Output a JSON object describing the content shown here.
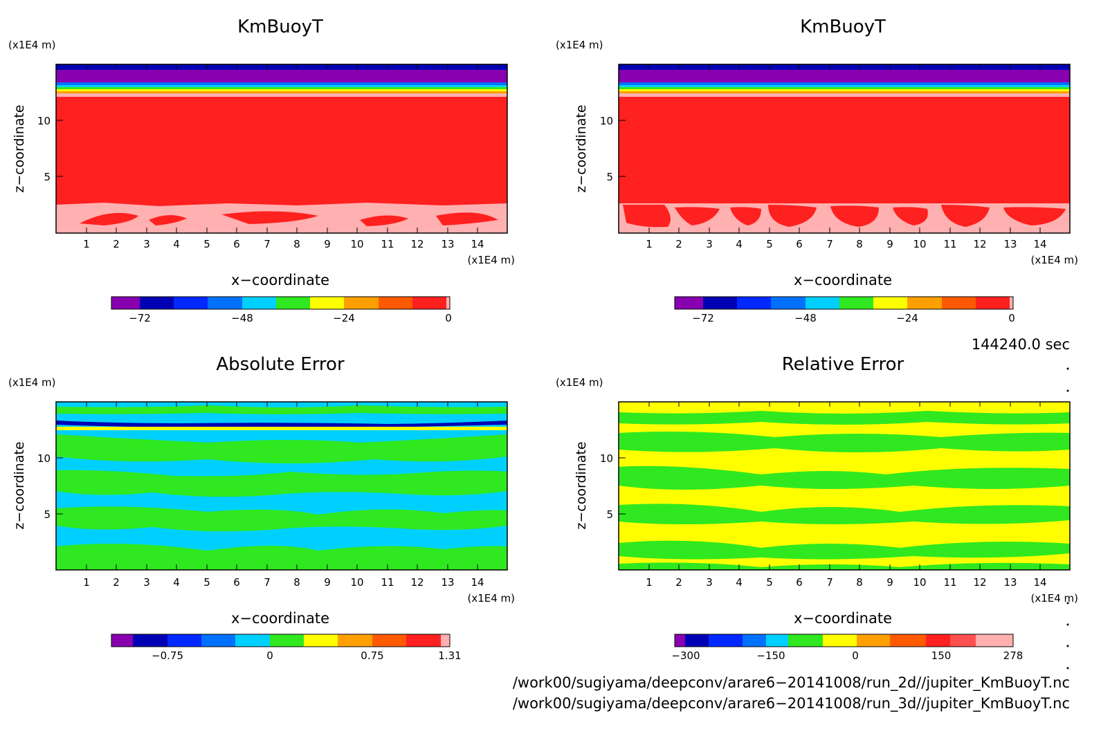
{
  "panels": [
    {
      "title": "KmBuoyT",
      "y_unit": "(x1E4 m)",
      "x_unit": "(x1E4 m)",
      "ylabel": "z−coordinate",
      "xlabel": "x−coordinate",
      "x_ticks": [
        "1",
        "2",
        "3",
        "4",
        "5",
        "6",
        "7",
        "8",
        "9",
        "10",
        "11",
        "12",
        "13",
        "14"
      ],
      "y_ticks": [
        "5",
        "10"
      ],
      "colorbar": {
        "colors": [
          "#8800b0",
          "#0000b4",
          "#0028ff",
          "#0070ff",
          "#00d0ff",
          "#30e820",
          "#ffff00",
          "#ffa000",
          "#ff5a00",
          "#ff2020",
          "#ffb0b0"
        ],
        "labels": [
          "−72",
          "−48",
          "−24",
          "0"
        ]
      }
    },
    {
      "title": "KmBuoyT",
      "y_unit": "(x1E4 m)",
      "x_unit": "(x1E4 m)",
      "ylabel": "z−coordinate",
      "xlabel": "x−coordinate",
      "x_ticks": [
        "1",
        "2",
        "3",
        "4",
        "5",
        "6",
        "7",
        "8",
        "9",
        "10",
        "11",
        "12",
        "13",
        "14"
      ],
      "y_ticks": [
        "5",
        "10"
      ],
      "colorbar": {
        "colors": [
          "#8800b0",
          "#0000b4",
          "#0028ff",
          "#0070ff",
          "#00d0ff",
          "#30e820",
          "#ffff00",
          "#ffa000",
          "#ff5a00",
          "#ff2020",
          "#ffb0b0"
        ],
        "labels": [
          "−72",
          "−48",
          "−24",
          "0"
        ]
      }
    },
    {
      "title": "Absolute Error",
      "y_unit": "(x1E4 m)",
      "x_unit": "(x1E4 m)",
      "ylabel": "z−coordinate",
      "xlabel": "x−coordinate",
      "x_ticks": [
        "1",
        "2",
        "3",
        "4",
        "5",
        "6",
        "7",
        "8",
        "9",
        "10",
        "11",
        "12",
        "13",
        "14"
      ],
      "y_ticks": [
        "5",
        "10"
      ],
      "colorbar": {
        "colors": [
          "#8800b0",
          "#0000b4",
          "#0028ff",
          "#0070ff",
          "#00d0ff",
          "#30e820",
          "#ffff00",
          "#ffa000",
          "#ff5a00",
          "#ff2020",
          "#ffb0b0"
        ],
        "labels": [
          "−0.75",
          "0",
          "0.75",
          "1.31"
        ]
      }
    },
    {
      "title": "Relative Error",
      "y_unit": "(x1E4 m)",
      "x_unit": "(x1E4 m)",
      "ylabel": "z−coordinate",
      "xlabel": "x−coordinate",
      "x_ticks": [
        "1",
        "2",
        "3",
        "4",
        "5",
        "6",
        "7",
        "8",
        "9",
        "10",
        "11",
        "12",
        "13",
        "14"
      ],
      "y_ticks": [
        "5",
        "10"
      ],
      "colorbar": {
        "colors": [
          "#8800b0",
          "#0000b4",
          "#0028ff",
          "#0070ff",
          "#00d0ff",
          "#30e820",
          "#ffff00",
          "#ffa000",
          "#ff5a00",
          "#ff2020",
          "#ffb0b0"
        ],
        "labels": [
          "−300",
          "−150",
          "0",
          "150",
          "278"
        ]
      }
    }
  ],
  "time_label": "144240.0 sec",
  "file_paths": [
    "/work00/sugiyama/deepconv/arare6−20141008/run_2d//jupiter_KmBuoyT.nc",
    "/work00/sugiyama/deepconv/arare6−20141008/run_3d//jupiter_KmBuoyT.nc"
  ],
  "chart_data": [
    {
      "type": "heatmap",
      "title": "KmBuoyT",
      "xlabel": "x−coordinate",
      "ylabel": "z−coordinate",
      "x_unit": "(x1E4 m)",
      "y_unit": "(x1E4 m)",
      "xlim": [
        0,
        15
      ],
      "ylim": [
        0,
        15
      ],
      "color_levels": [
        "−72",
        "−48",
        "−24",
        "0"
      ],
      "layers": [
        {
          "z_range": [
            14.5,
            15.0
          ],
          "color": "#0000b4"
        },
        {
          "z_range": [
            13.4,
            14.5
          ],
          "color": "#8800b0"
        },
        {
          "z_range": [
            13.0,
            13.4
          ],
          "color": "#00d0ff"
        },
        {
          "z_range": [
            12.6,
            13.0
          ],
          "color": "#ffff00"
        },
        {
          "z_range": [
            12.0,
            12.6
          ],
          "color": "#ffb0b0"
        },
        {
          "z_range": [
            2.5,
            12.0
          ],
          "color": "#ff2020"
        },
        {
          "z_range": [
            0.0,
            2.5
          ],
          "color": "#ffb0b0"
        }
      ]
    },
    {
      "type": "heatmap",
      "title": "KmBuoyT",
      "xlabel": "x−coordinate",
      "ylabel": "z−coordinate",
      "x_unit": "(x1E4 m)",
      "y_unit": "(x1E4 m)",
      "xlim": [
        0,
        15
      ],
      "ylim": [
        0,
        15
      ],
      "color_levels": [
        "−72",
        "−48",
        "−24",
        "0"
      ],
      "layers": [
        {
          "z_range": [
            14.5,
            15.0
          ],
          "color": "#0000b4"
        },
        {
          "z_range": [
            13.4,
            14.5
          ],
          "color": "#8800b0"
        },
        {
          "z_range": [
            13.0,
            13.4
          ],
          "color": "#00d0ff"
        },
        {
          "z_range": [
            12.6,
            13.0
          ],
          "color": "#ffff00"
        },
        {
          "z_range": [
            12.0,
            12.6
          ],
          "color": "#ffb0b0"
        },
        {
          "z_range": [
            2.5,
            12.0
          ],
          "color": "#ff2020"
        },
        {
          "z_range": [
            0.0,
            2.5
          ],
          "color": "#ffb0b0"
        }
      ]
    },
    {
      "type": "heatmap",
      "title": "Absolute Error",
      "xlabel": "x−coordinate",
      "ylabel": "z−coordinate",
      "x_unit": "(x1E4 m)",
      "y_unit": "(x1E4 m)",
      "xlim": [
        0,
        15
      ],
      "ylim": [
        0,
        15
      ],
      "color_levels": [
        "−0.75",
        "0",
        "0.75",
        "1.31"
      ],
      "layers": [
        {
          "z_range": [
            13.6,
            15.0
          ],
          "color": "#00d0ff"
        },
        {
          "z_range": [
            13.0,
            13.6
          ],
          "color": "#0000b4"
        },
        {
          "z_range": [
            11.0,
            13.0
          ],
          "color": "#00d0ff"
        },
        {
          "z_range": [
            9.0,
            11.0
          ],
          "color": "#30e820"
        },
        {
          "z_range": [
            6.5,
            9.0
          ],
          "color": "#00d0ff"
        },
        {
          "z_range": [
            4.5,
            6.5
          ],
          "color": "#30e820"
        },
        {
          "z_range": [
            2.5,
            4.5
          ],
          "color": "#00d0ff"
        },
        {
          "z_range": [
            0.0,
            2.5
          ],
          "color": "#30e820"
        }
      ]
    },
    {
      "type": "heatmap",
      "title": "Relative Error",
      "xlabel": "x−coordinate",
      "ylabel": "z−coordinate",
      "x_unit": "(x1E4 m)",
      "y_unit": "(x1E4 m)",
      "xlim": [
        0,
        15
      ],
      "ylim": [
        0,
        15
      ],
      "color_levels": [
        "−300",
        "−150",
        "0",
        "150",
        "278"
      ],
      "layers": [
        {
          "z_range": [
            13.8,
            15.0
          ],
          "color": "#ffff00"
        },
        {
          "z_range": [
            12.0,
            13.8
          ],
          "color": "#30e820"
        },
        {
          "z_range": [
            10.0,
            12.0
          ],
          "color": "#ffff00"
        },
        {
          "z_range": [
            8.0,
            10.0
          ],
          "color": "#30e820"
        },
        {
          "z_range": [
            6.0,
            8.0
          ],
          "color": "#ffff00"
        },
        {
          "z_range": [
            4.0,
            6.0
          ],
          "color": "#30e820"
        },
        {
          "z_range": [
            2.0,
            4.0
          ],
          "color": "#ffff00"
        },
        {
          "z_range": [
            0.0,
            2.0
          ],
          "color": "#30e820"
        }
      ]
    }
  ]
}
